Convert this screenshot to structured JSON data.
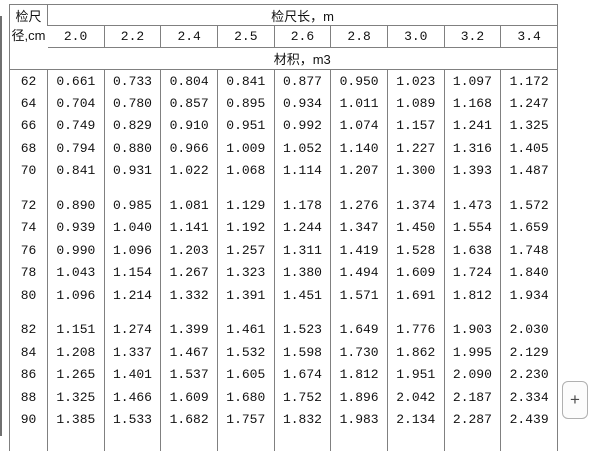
{
  "colors": {
    "grid": "#808080",
    "text": "#111111",
    "page_background": "#ffffff",
    "button_border": "#b0b0b0"
  },
  "table": {
    "corner": {
      "line1": "检尺",
      "line2": "径,cm"
    },
    "length_header": "检尺长，m",
    "volume_header": "材积，m3",
    "lengths": [
      "2.0",
      "2.2",
      "2.4",
      "2.5",
      "2.6",
      "2.8",
      "3.0",
      "3.2",
      "3.4"
    ],
    "groups": [
      {
        "rows": [
          {
            "d": "62",
            "v": [
              "0.661",
              "0.733",
              "0.804",
              "0.841",
              "0.877",
              "0.950",
              "1.023",
              "1.097",
              "1.172"
            ]
          },
          {
            "d": "64",
            "v": [
              "0.704",
              "0.780",
              "0.857",
              "0.895",
              "0.934",
              "1.011",
              "1.089",
              "1.168",
              "1.247"
            ]
          },
          {
            "d": "66",
            "v": [
              "0.749",
              "0.829",
              "0.910",
              "0.951",
              "0.992",
              "1.074",
              "1.157",
              "1.241",
              "1.325"
            ]
          },
          {
            "d": "68",
            "v": [
              "0.794",
              "0.880",
              "0.966",
              "1.009",
              "1.052",
              "1.140",
              "1.227",
              "1.316",
              "1.405"
            ]
          },
          {
            "d": "70",
            "v": [
              "0.841",
              "0.931",
              "1.022",
              "1.068",
              "1.114",
              "1.207",
              "1.300",
              "1.393",
              "1.487"
            ]
          }
        ]
      },
      {
        "rows": [
          {
            "d": "72",
            "v": [
              "0.890",
              "0.985",
              "1.081",
              "1.129",
              "1.178",
              "1.276",
              "1.374",
              "1.473",
              "1.572"
            ]
          },
          {
            "d": "74",
            "v": [
              "0.939",
              "1.040",
              "1.141",
              "1.192",
              "1.244",
              "1.347",
              "1.450",
              "1.554",
              "1.659"
            ]
          },
          {
            "d": "76",
            "v": [
              "0.990",
              "1.096",
              "1.203",
              "1.257",
              "1.311",
              "1.419",
              "1.528",
              "1.638",
              "1.748"
            ]
          },
          {
            "d": "78",
            "v": [
              "1.043",
              "1.154",
              "1.267",
              "1.323",
              "1.380",
              "1.494",
              "1.609",
              "1.724",
              "1.840"
            ]
          },
          {
            "d": "80",
            "v": [
              "1.096",
              "1.214",
              "1.332",
              "1.391",
              "1.451",
              "1.571",
              "1.691",
              "1.812",
              "1.934"
            ]
          }
        ]
      },
      {
        "rows": [
          {
            "d": "82",
            "v": [
              "1.151",
              "1.274",
              "1.399",
              "1.461",
              "1.523",
              "1.649",
              "1.776",
              "1.903",
              "2.030"
            ]
          },
          {
            "d": "84",
            "v": [
              "1.208",
              "1.337",
              "1.467",
              "1.532",
              "1.598",
              "1.730",
              "1.862",
              "1.995",
              "2.129"
            ]
          },
          {
            "d": "86",
            "v": [
              "1.265",
              "1.401",
              "1.537",
              "1.605",
              "1.674",
              "1.812",
              "1.951",
              "2.090",
              "2.230"
            ]
          },
          {
            "d": "88",
            "v": [
              "1.325",
              "1.466",
              "1.609",
              "1.680",
              "1.752",
              "1.896",
              "2.042",
              "2.187",
              "2.334"
            ]
          },
          {
            "d": "90",
            "v": [
              "1.385",
              "1.533",
              "1.682",
              "1.757",
              "1.832",
              "1.983",
              "2.134",
              "2.287",
              "2.439"
            ]
          }
        ]
      }
    ]
  },
  "plus_button": {
    "label": "+"
  }
}
